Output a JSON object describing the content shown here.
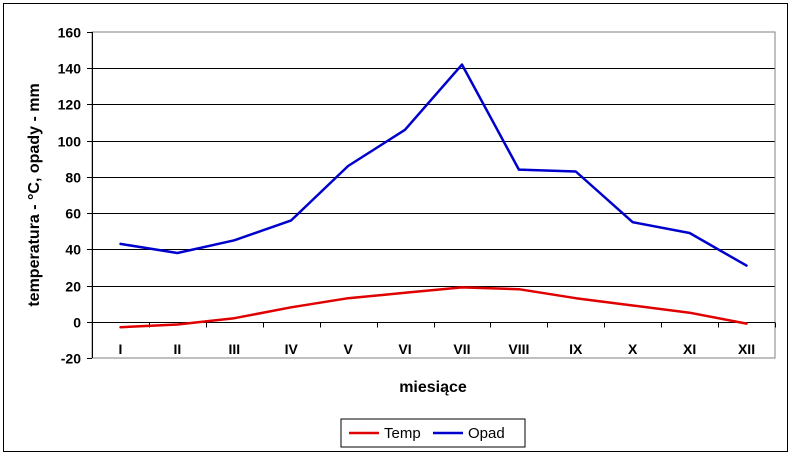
{
  "chart_data": {
    "type": "line",
    "title": "",
    "xlabel": "miesiące",
    "ylabel": "temperatura - °C, opady - mm",
    "categories": [
      "I",
      "II",
      "III",
      "IV",
      "V",
      "VI",
      "VII",
      "VIII",
      "IX",
      "X",
      "XI",
      "XII"
    ],
    "ylim": [
      -20,
      160
    ],
    "yticks": [
      -20,
      0,
      20,
      40,
      60,
      80,
      100,
      120,
      140,
      160
    ],
    "grid": true,
    "legend_position": "bottom",
    "series": [
      {
        "name": "Temp",
        "color": "#e00000",
        "values": [
          -3,
          -1.5,
          2,
          8,
          13,
          16,
          19,
          18,
          13,
          9,
          5,
          -1
        ]
      },
      {
        "name": "Opad",
        "color": "#0000cc",
        "values": [
          43,
          38,
          45,
          56,
          86,
          106,
          142,
          84,
          83,
          55,
          49,
          31
        ]
      }
    ]
  }
}
